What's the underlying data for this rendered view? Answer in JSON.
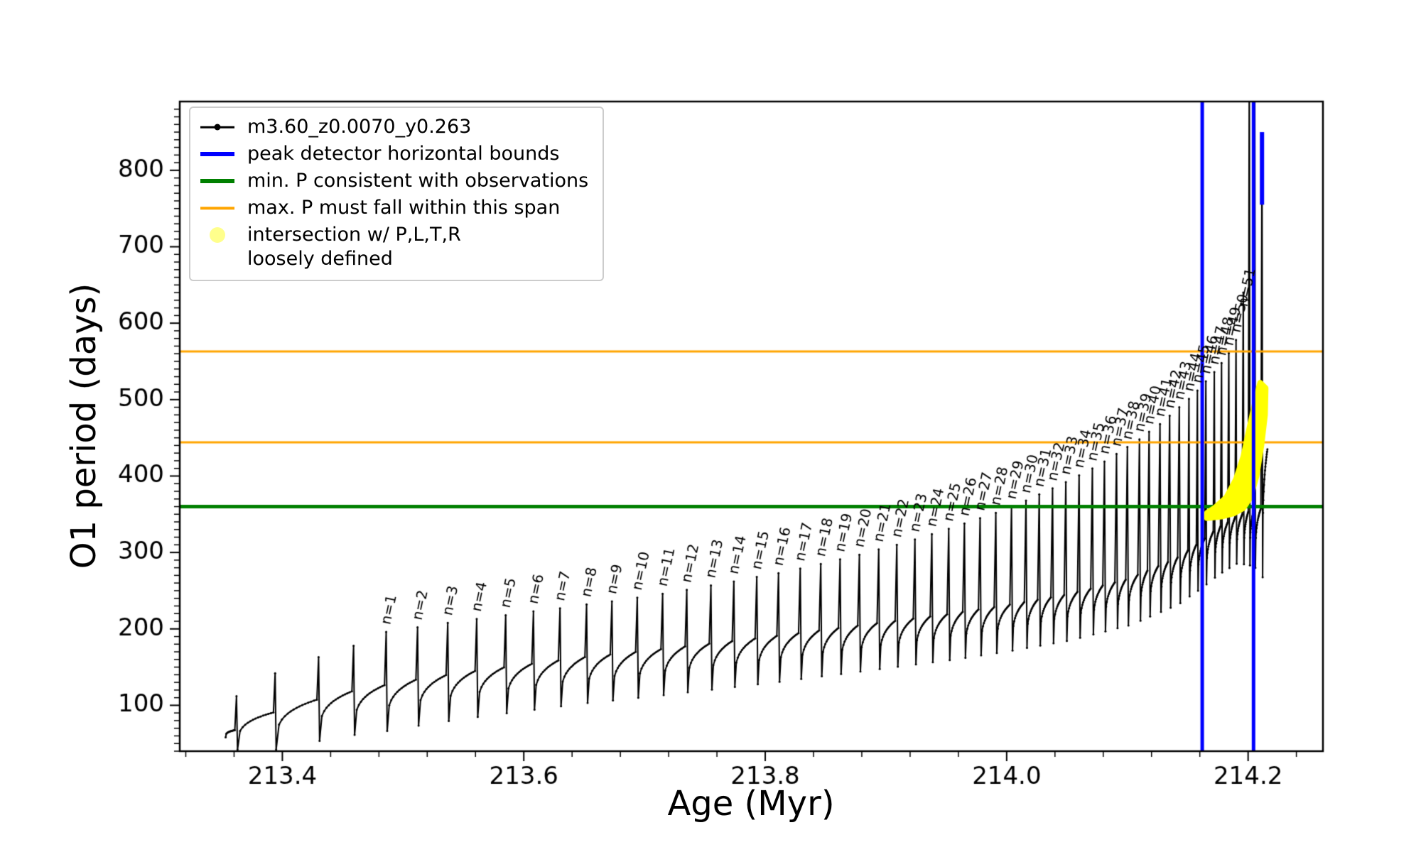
{
  "figure": {
    "xlabel": "Age (Myr)",
    "ylabel": "O1 period (days)"
  },
  "chart_data": {
    "type": "line",
    "title": "",
    "xlabel": "Age (Myr)",
    "ylabel": "O1 period (days)",
    "xlim": [
      213.315,
      214.262
    ],
    "ylim": [
      40,
      890
    ],
    "xticks": [
      213.4,
      213.6,
      213.8,
      214.0,
      214.2
    ],
    "xtick_labels": [
      "213.4",
      "213.6",
      "213.8",
      "214.0",
      "214.2"
    ],
    "yticks": [
      100,
      200,
      300,
      400,
      500,
      600,
      700,
      800
    ],
    "ytick_labels": [
      "100",
      "200",
      "300",
      "400",
      "500",
      "600",
      "700",
      "800"
    ],
    "x_minor_step": 0.04,
    "y_minor_step": 10,
    "legend": [
      {
        "label": "m3.60_z0.0070_y0.263",
        "marker": "line-dot",
        "color": "#000000"
      },
      {
        "label": "peak detector horizontal bounds",
        "marker": "thick-line",
        "color": "#0000ff"
      },
      {
        "label": "min. P consistent with observations",
        "marker": "thick-line",
        "color": "#008000"
      },
      {
        "label": "max. P must fall within this span",
        "marker": "line",
        "color": "#ffa500"
      },
      {
        "label": "intersection w/ P,L,T,R\nloosely defined",
        "marker": "dot",
        "color": "rgba(255,255,0,0.45)"
      }
    ],
    "h_lines": [
      {
        "y": 360,
        "color": "#008000",
        "lw": 5,
        "name": "min. P consistent with observations"
      },
      {
        "y": 444,
        "color": "#ffa500",
        "lw": 3,
        "name": "max. P span lower bound"
      },
      {
        "y": 563,
        "color": "#ffa500",
        "lw": 3,
        "name": "max. P span upper bound"
      }
    ],
    "v_lines": [
      {
        "x": 214.162,
        "color": "#0000ff",
        "lw": 5,
        "name": "peak detector left bound"
      },
      {
        "x": 214.2045,
        "color": "#0000ff",
        "lw": 5,
        "name": "peak detector right bound"
      }
    ],
    "peak_marks": [
      {
        "x": 214.2115,
        "y0": 755,
        "y1": 850,
        "color": "#0000ff"
      }
    ],
    "intersection_color": "#ffff00",
    "intersection_polygon": [
      [
        214.166,
        345
      ],
      [
        214.178,
        347
      ],
      [
        214.188,
        351
      ],
      [
        214.196,
        358
      ],
      [
        214.202,
        372
      ],
      [
        214.207,
        400
      ],
      [
        214.211,
        440
      ],
      [
        214.214,
        480
      ],
      [
        214.2145,
        515
      ],
      [
        214.21,
        522
      ],
      [
        214.206,
        498
      ],
      [
        214.201,
        462
      ],
      [
        214.196,
        425
      ],
      [
        214.19,
        396
      ],
      [
        214.182,
        372
      ],
      [
        214.172,
        358
      ],
      [
        214.166,
        352
      ]
    ],
    "series": {
      "name": "m3.60_z0.0070_y0.263",
      "color": "#000000",
      "start": [
        213.353,
        58
      ],
      "end": [
        214.216,
        435
      ],
      "dip_depth": 60,
      "baseline_points": [
        [
          213.353,
          62
        ],
        [
          213.4,
          96
        ],
        [
          213.45,
          116
        ],
        [
          213.5,
          131
        ],
        [
          213.55,
          143
        ],
        [
          213.6,
          153
        ],
        [
          213.65,
          163
        ],
        [
          213.7,
          171
        ],
        [
          213.75,
          180
        ],
        [
          213.8,
          189
        ],
        [
          213.85,
          199
        ],
        [
          213.9,
          209
        ],
        [
          213.95,
          219
        ],
        [
          214.0,
          231
        ],
        [
          214.05,
          245
        ],
        [
          214.1,
          265
        ],
        [
          214.14,
          292
        ],
        [
          214.16,
          313
        ],
        [
          214.175,
          332
        ],
        [
          214.19,
          346
        ],
        [
          214.2,
          353
        ],
        [
          214.216,
          360
        ]
      ],
      "pulses": [
        {
          "x": 213.362,
          "peak": 112,
          "dip": 46
        },
        {
          "x": 213.394,
          "peak": 142,
          "dip": 50
        },
        {
          "x": 213.43,
          "peak": 163,
          "dip": 54
        },
        {
          "x": 213.459,
          "peak": 178,
          "dip": 57
        },
        {
          "x": 213.486,
          "peak": 196,
          "label": "n=1"
        },
        {
          "x": 213.512,
          "peak": 202,
          "label": "n=2"
        },
        {
          "x": 213.537,
          "peak": 208,
          "label": "n=3"
        },
        {
          "x": 213.561,
          "peak": 213,
          "label": "n=4"
        },
        {
          "x": 213.585,
          "peak": 218,
          "label": "n=5"
        },
        {
          "x": 213.608,
          "peak": 223,
          "label": "n=6"
        },
        {
          "x": 213.63,
          "peak": 227,
          "label": "n=7"
        },
        {
          "x": 213.652,
          "peak": 232,
          "label": "n=8"
        },
        {
          "x": 213.673,
          "peak": 236,
          "label": "n=9"
        },
        {
          "x": 213.694,
          "peak": 241,
          "label": "n=10"
        },
        {
          "x": 213.715,
          "peak": 246,
          "label": "n=11"
        },
        {
          "x": 213.735,
          "peak": 251,
          "label": "n=12"
        },
        {
          "x": 213.755,
          "peak": 257,
          "label": "n=13"
        },
        {
          "x": 213.774,
          "peak": 262,
          "label": "n=14"
        },
        {
          "x": 213.793,
          "peak": 268,
          "label": "n=15"
        },
        {
          "x": 213.811,
          "peak": 273,
          "label": "n=16"
        },
        {
          "x": 213.829,
          "peak": 279,
          "label": "n=17"
        },
        {
          "x": 213.846,
          "peak": 285,
          "label": "n=18"
        },
        {
          "x": 213.862,
          "peak": 291,
          "label": "n=19"
        },
        {
          "x": 213.878,
          "peak": 297,
          "label": "n=20"
        },
        {
          "x": 213.894,
          "peak": 304,
          "label": "n=21"
        },
        {
          "x": 213.909,
          "peak": 310,
          "label": "n=22"
        },
        {
          "x": 213.924,
          "peak": 317,
          "label": "n=23"
        },
        {
          "x": 213.938,
          "peak": 324,
          "label": "n=24"
        },
        {
          "x": 213.952,
          "peak": 331,
          "label": "n=25"
        },
        {
          "x": 213.965,
          "peak": 338,
          "label": "n=26"
        },
        {
          "x": 213.978,
          "peak": 345,
          "label": "n=27"
        },
        {
          "x": 213.991,
          "peak": 352,
          "label": "n=28"
        },
        {
          "x": 214.004,
          "peak": 360,
          "label": "n=29"
        },
        {
          "x": 214.016,
          "peak": 368,
          "label": "n=30"
        },
        {
          "x": 214.027,
          "peak": 376,
          "label": "n=31"
        },
        {
          "x": 214.038,
          "peak": 384,
          "label": "n=32"
        },
        {
          "x": 214.049,
          "peak": 392,
          "label": "n=33"
        },
        {
          "x": 214.06,
          "peak": 401,
          "label": "n=34"
        },
        {
          "x": 214.071,
          "peak": 410,
          "label": "n=35"
        },
        {
          "x": 214.081,
          "peak": 419,
          "label": "n=36"
        },
        {
          "x": 214.091,
          "peak": 429,
          "label": "n=37"
        },
        {
          "x": 214.1,
          "peak": 438,
          "label": "n=38"
        },
        {
          "x": 214.11,
          "peak": 448,
          "label": "n=39"
        },
        {
          "x": 214.118,
          "peak": 458,
          "label": "n=40"
        },
        {
          "x": 214.127,
          "peak": 468,
          "label": "n=41"
        },
        {
          "x": 214.135,
          "peak": 479,
          "label": "n=42"
        },
        {
          "x": 214.143,
          "peak": 490,
          "label": "n=43"
        },
        {
          "x": 214.151,
          "peak": 501,
          "label": "n=44"
        },
        {
          "x": 214.158,
          "peak": 512,
          "label": "n=45"
        },
        {
          "x": 214.165,
          "peak": 524,
          "label": "n=46"
        },
        {
          "x": 214.172,
          "peak": 536,
          "label": "n=47"
        },
        {
          "x": 214.178,
          "peak": 548,
          "label": "n=48"
        },
        {
          "x": 214.184,
          "peak": 561,
          "label": "n=49"
        },
        {
          "x": 214.19,
          "peak": 578,
          "label": "n=50"
        },
        {
          "x": 214.196,
          "peak": 640,
          "label": "n=51",
          "dip": 65
        },
        {
          "x": 214.201,
          "peak": 950,
          "dip": 70
        },
        {
          "x": 214.2055,
          "peak": 960,
          "dip": 75
        },
        {
          "x": 214.2115,
          "peak": 845,
          "dip": 90
        }
      ]
    }
  }
}
